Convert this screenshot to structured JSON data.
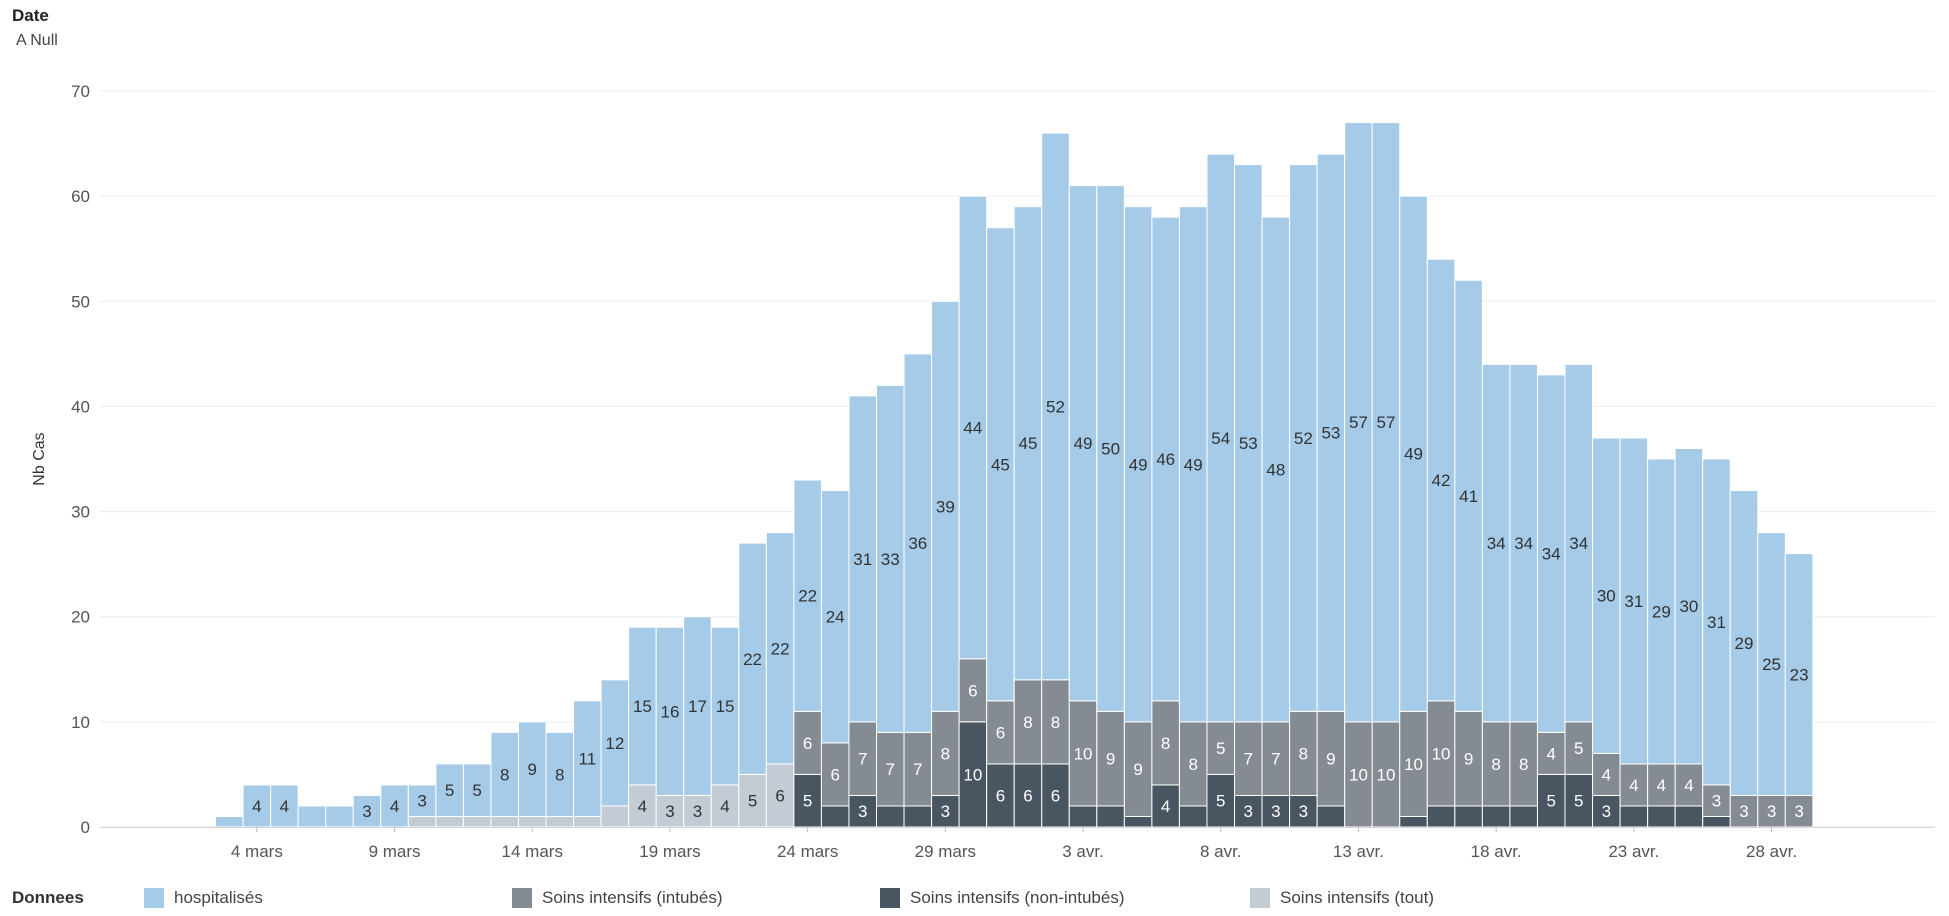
{
  "header": {
    "title": "Date",
    "subtitle": "A Null"
  },
  "chart_data": {
    "type": "bar",
    "stacked": true,
    "ylabel": "Nb Cas",
    "ylim": [
      0,
      70
    ],
    "yticks": [
      0,
      10,
      20,
      30,
      40,
      50,
      60,
      70
    ],
    "xtick_labels": [
      {
        "index": 2,
        "label": "4 mars"
      },
      {
        "index": 7,
        "label": "9 mars"
      },
      {
        "index": 12,
        "label": "14 mars"
      },
      {
        "index": 17,
        "label": "19 mars"
      },
      {
        "index": 22,
        "label": "24 mars"
      },
      {
        "index": 27,
        "label": "29 mars"
      },
      {
        "index": 32,
        "label": "3 avr."
      },
      {
        "index": 37,
        "label": "8 avr."
      },
      {
        "index": 42,
        "label": "13 avr."
      },
      {
        "index": 47,
        "label": "18 avr."
      },
      {
        "index": 52,
        "label": "23 avr."
      },
      {
        "index": 57,
        "label": "28 avr."
      }
    ],
    "grid": true,
    "legend_position": "bottom",
    "legend_title": "Donnees",
    "series": [
      {
        "name": "Soins intensifs (non-intubés)",
        "color": "#4a5562",
        "text_color": "#ffffff",
        "values": [
          0,
          0,
          0,
          0,
          0,
          0,
          0,
          0,
          0,
          0,
          0,
          0,
          0,
          0,
          0,
          0,
          0,
          0,
          0,
          0,
          0,
          0,
          5,
          2,
          3,
          2,
          2,
          3,
          10,
          6,
          6,
          6,
          2,
          2,
          1,
          4,
          2,
          5,
          3,
          3,
          3,
          2,
          0,
          0,
          1,
          2,
          2,
          2,
          2,
          5,
          5,
          3,
          2,
          2,
          2,
          1,
          0,
          0,
          0
        ],
        "labels": [
          null,
          null,
          null,
          null,
          null,
          null,
          null,
          null,
          null,
          null,
          null,
          null,
          null,
          null,
          null,
          null,
          null,
          null,
          null,
          null,
          null,
          null,
          "5",
          null,
          "3",
          null,
          null,
          "3",
          "10",
          "6",
          "6",
          "6",
          null,
          null,
          null,
          "4",
          null,
          "5",
          "3",
          "3",
          "3",
          null,
          null,
          null,
          null,
          null,
          null,
          null,
          null,
          "5",
          "5",
          "3",
          null,
          null,
          null,
          null,
          null,
          null,
          null
        ]
      },
      {
        "name": "Soins intensifs (intubés)",
        "color": "#858b93",
        "text_color": "#ffffff",
        "values": [
          0,
          0,
          0,
          0,
          0,
          0,
          0,
          0,
          0,
          0,
          0,
          0,
          0,
          0,
          0,
          0,
          0,
          0,
          0,
          0,
          0,
          0,
          6,
          6,
          7,
          7,
          7,
          8,
          6,
          6,
          8,
          8,
          10,
          9,
          9,
          8,
          8,
          5,
          7,
          7,
          8,
          9,
          10,
          10,
          10,
          10,
          9,
          8,
          8,
          4,
          5,
          4,
          4,
          4,
          4,
          3,
          3,
          3,
          3
        ],
        "labels": [
          null,
          null,
          null,
          null,
          null,
          null,
          null,
          null,
          null,
          null,
          null,
          null,
          null,
          null,
          null,
          null,
          null,
          null,
          null,
          null,
          null,
          null,
          "6",
          "6",
          "7",
          "7",
          "7",
          "8",
          "6",
          "6",
          "8",
          "8",
          "10",
          "9",
          "9",
          "8",
          "8",
          "5",
          "7",
          "7",
          "8",
          "9",
          "10",
          "10",
          "10",
          "10",
          "9",
          "8",
          "8",
          "4",
          "5",
          "4",
          "4",
          "4",
          "4",
          "3",
          "3",
          "3",
          "3"
        ]
      },
      {
        "name": "Soins intensifs (tout)",
        "color": "#c3cbd4",
        "text_color": "#333333",
        "values": [
          0,
          0,
          0,
          0,
          0,
          0,
          0,
          0,
          1,
          1,
          1,
          1,
          1,
          1,
          1,
          2,
          4,
          3,
          3,
          4,
          5,
          6,
          0,
          0,
          0,
          0,
          0,
          0,
          0,
          0,
          0,
          0,
          0,
          0,
          0,
          0,
          0,
          0,
          0,
          0,
          0,
          0,
          0,
          0,
          0,
          0,
          0,
          0,
          0,
          0,
          0,
          0,
          0,
          0,
          0,
          0,
          0,
          0,
          0
        ],
        "labels": [
          null,
          null,
          null,
          null,
          null,
          null,
          null,
          null,
          null,
          null,
          null,
          null,
          null,
          null,
          null,
          null,
          "4",
          "3",
          "3",
          "4",
          "5",
          "6",
          null,
          null,
          null,
          null,
          null,
          null,
          null,
          null,
          null,
          null,
          null,
          null,
          null,
          null,
          null,
          null,
          null,
          null,
          null,
          null,
          null,
          null,
          null,
          null,
          null,
          null,
          null,
          null,
          null,
          null,
          null,
          null,
          null,
          null,
          null,
          null,
          null
        ]
      },
      {
        "name": "hospitalisés",
        "color": "#a6cbe8",
        "text_color": "#333333",
        "values": [
          0,
          1,
          4,
          4,
          2,
          2,
          3,
          4,
          3,
          5,
          5,
          8,
          9,
          8,
          11,
          12,
          15,
          16,
          17,
          15,
          22,
          22,
          22,
          24,
          31,
          33,
          36,
          39,
          44,
          45,
          45,
          52,
          49,
          50,
          49,
          46,
          49,
          54,
          53,
          48,
          52,
          53,
          57,
          57,
          49,
          42,
          41,
          34,
          34,
          34,
          34,
          30,
          31,
          29,
          30,
          31,
          29,
          25,
          23
        ],
        "labels": [
          null,
          null,
          "4",
          "4",
          null,
          null,
          "3",
          "4",
          "3",
          "5",
          "5",
          "8",
          "9",
          "8",
          "11",
          "12",
          "15",
          "16",
          "17",
          "15",
          "22",
          "22",
          "22",
          "24",
          "31",
          "33",
          "36",
          "39",
          "44",
          "45",
          "45",
          "52",
          "49",
          "50",
          "49",
          "46",
          "49",
          "54",
          "53",
          "48",
          "52",
          "53",
          "57",
          "57",
          "49",
          "42",
          "41",
          "34",
          "34",
          "34",
          "34",
          "30",
          "31",
          "29",
          "30",
          "31",
          "29",
          "25",
          "23"
        ]
      }
    ]
  },
  "legend": {
    "title": "Donnees",
    "items": [
      {
        "label": "hospitalisés",
        "color": "#a6cbe8"
      },
      {
        "label": "Soins intensifs (intubés)",
        "color": "#858b93"
      },
      {
        "label": "Soins intensifs (non-intubés)",
        "color": "#4a5562"
      },
      {
        "label": "Soins intensifs (tout)",
        "color": "#c3cbd4"
      }
    ]
  }
}
